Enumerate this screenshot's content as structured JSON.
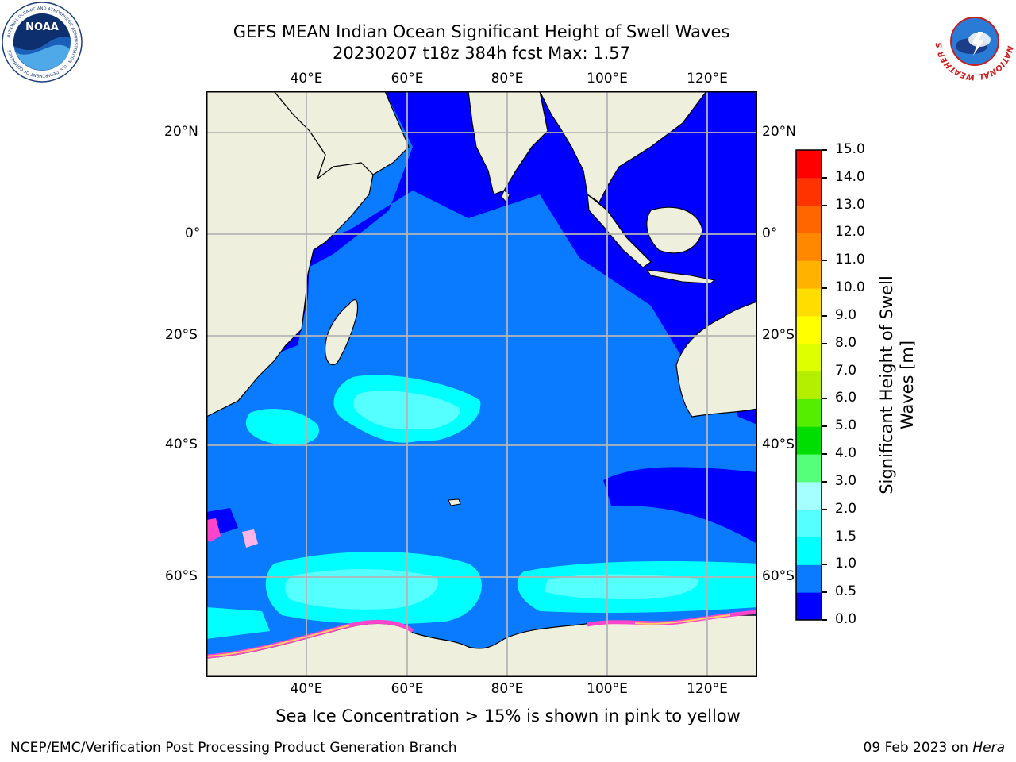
{
  "title": {
    "line1": "GEFS MEAN Indian Ocean Significant Height of Swell Waves",
    "line2": "20230207 t18z 384h fcst   Max: 1.57"
  },
  "map": {
    "region": "Indian Ocean",
    "lon_labels": [
      "40°E",
      "60°E",
      "80°E",
      "100°E",
      "120°E"
    ],
    "lat_labels": [
      "20°N",
      "0°",
      "20°S",
      "40°S",
      "60°S"
    ],
    "colors": {
      "land": "#efefde",
      "water_0_0_5": "#0000ff",
      "water_0_5_1": "#0a7aff",
      "water_1_1_5": "#00ffff",
      "water_1_5_2": "#55ffff",
      "sea_ice": "#ff44cc",
      "grid": "#b5b5b5"
    }
  },
  "colorbar": {
    "label_line1": "Significant Height of Swell",
    "label_line2": "Waves [m]",
    "ticks": [
      "0.0",
      "0.5",
      "1.0",
      "1.5",
      "2.0",
      "3.0",
      "4.0",
      "5.0",
      "6.0",
      "7.0",
      "8.0",
      "9.0",
      "10.0",
      "11.0",
      "12.0",
      "13.0",
      "14.0",
      "15.0"
    ],
    "colors": [
      "#0000ff",
      "#0a7aff",
      "#00ffff",
      "#55ffff",
      "#a6ffff",
      "#55ff7a",
      "#00dd00",
      "#55ee00",
      "#b4ee00",
      "#ddff00",
      "#ffff00",
      "#ffdd00",
      "#ffb300",
      "#ff8800",
      "#ff6600",
      "#ff3300",
      "#ff0000"
    ]
  },
  "caption": "Sea Ice Concentration > 15% is shown in pink to yellow",
  "footer": {
    "left": "NCEP/EMC/Verification Post Processing Product Generation Branch",
    "right_date": "09 Feb 2023 on ",
    "right_host": "Hera"
  },
  "logos": {
    "left_text": "NOAA",
    "left_ring": "NATIONAL OCEANIC AND ATMOSPHERIC ADMINISTRATION · U.S. DEPARTMENT OF COMMERCE",
    "right_ring": "NATIONAL WEATHER SERVICE"
  }
}
